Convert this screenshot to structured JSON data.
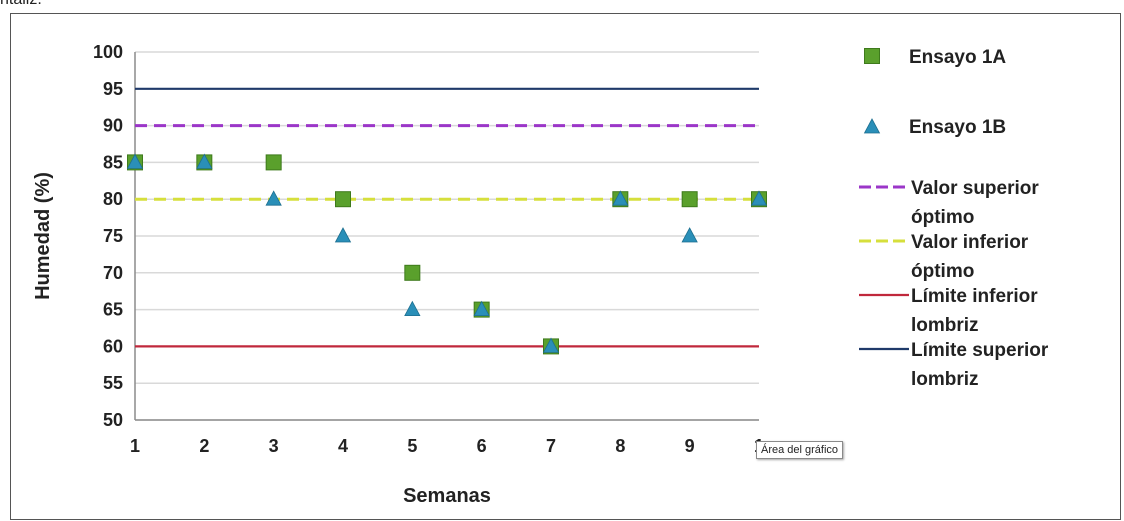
{
  "top_fragment": "ntaliz.",
  "tooltip": "Área del gráfico",
  "colors": {
    "ensayo_1a": "#5aa02c",
    "ensayo_1b": "#2a8fb8",
    "valor_superior": "#9b36c8",
    "valor_inferior": "#d6df3c",
    "limite_inferior": "#c0283c",
    "limite_superior": "#1f3a6a",
    "grid": "#d9d9d9"
  },
  "chart_data": {
    "type": "scatter",
    "xlabel": "Semanas",
    "ylabel": "Humedad (%)",
    "x_ticks": [
      "1",
      "2",
      "3",
      "4",
      "5",
      "6",
      "7",
      "8",
      "9",
      "1"
    ],
    "y_ticks": [
      "50",
      "55",
      "60",
      "65",
      "70",
      "75",
      "80",
      "85",
      "90",
      "95",
      "100"
    ],
    "xlim": [
      1,
      10
    ],
    "ylim": [
      50,
      100
    ],
    "grid": "horizontal",
    "legend_position": "right",
    "x": [
      1,
      2,
      3,
      4,
      5,
      6,
      7,
      8,
      9,
      10
    ],
    "series": [
      {
        "name": "Ensayo 1A",
        "kind": "marker",
        "marker": "square",
        "values": [
          85,
          85,
          85,
          80,
          70,
          65,
          60,
          80,
          80,
          80
        ]
      },
      {
        "name": "Ensayo 1B",
        "kind": "marker",
        "marker": "triangle",
        "values": [
          85,
          85,
          80,
          75,
          65,
          65,
          60,
          80,
          75,
          80
        ]
      },
      {
        "name": "Valor superior óptimo",
        "name_lines": [
          "Valor superior",
          "óptimo"
        ],
        "kind": "hline",
        "style": "dashed",
        "value": 90
      },
      {
        "name": "Valor inferior óptimo",
        "name_lines": [
          "Valor inferior",
          "óptimo"
        ],
        "kind": "hline",
        "style": "dashed",
        "value": 80
      },
      {
        "name": "Límite inferior lombriz",
        "name_lines": [
          "Límite inferior",
          "lombriz"
        ],
        "kind": "hline",
        "style": "solid",
        "value": 60
      },
      {
        "name": "Límite superior lombriz",
        "name_lines": [
          "Límite superior",
          "lombriz"
        ],
        "kind": "hline",
        "style": "solid",
        "value": 95
      }
    ]
  }
}
